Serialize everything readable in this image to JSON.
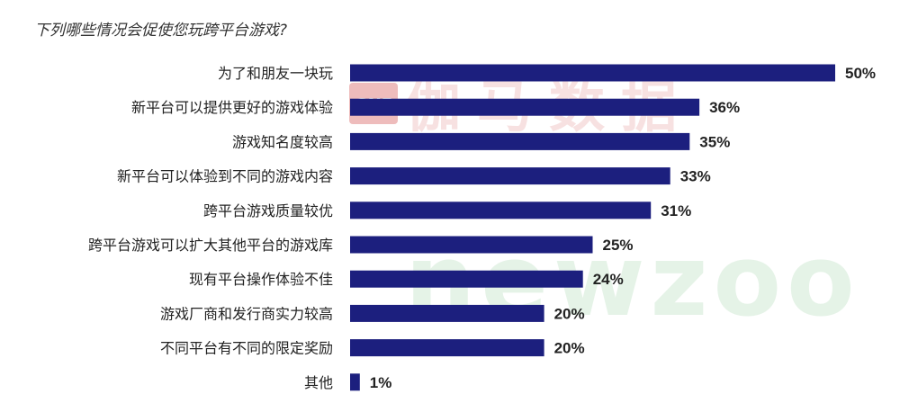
{
  "question": "下列哪些情况会促使您玩跨平台游戏?",
  "watermark": {
    "logo": "GNE",
    "cn_text": "伽马数据",
    "en_text": "newzoo"
  },
  "colors": {
    "bar": "#1c1f7e",
    "watermark_red": "#e9a4a4",
    "watermark_green": "#cfe6d3"
  },
  "chart_data": {
    "type": "bar",
    "orientation": "horizontal",
    "title": "下列哪些情况会促使您玩跨平台游戏?",
    "xlabel": "",
    "ylabel": "",
    "xlim": [
      0,
      50
    ],
    "grid": false,
    "categories": [
      "为了和朋友一块玩",
      "新平台可以提供更好的游戏体验",
      "游戏知名度较高",
      "新平台可以体验到不同的游戏内容",
      "跨平台游戏质量较优",
      "跨平台游戏可以扩大其他平台的游戏库",
      "现有平台操作体验不佳",
      "游戏厂商和发行商实力较高",
      "不同平台有不同的限定奖励",
      "其他"
    ],
    "values": [
      50,
      36,
      35,
      33,
      31,
      25,
      24,
      20,
      20,
      1
    ],
    "value_labels": [
      "50%",
      "36%",
      "35%",
      "33%",
      "31%",
      "25%",
      "24%",
      "20%",
      "20%",
      "1%"
    ]
  }
}
